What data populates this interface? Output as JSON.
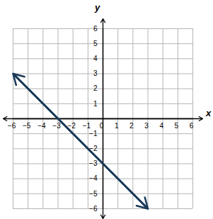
{
  "chart_data": {
    "type": "line",
    "xlabel": "x",
    "ylabel": "y",
    "x": [
      -6,
      3
    ],
    "values": [
      3,
      -6
    ],
    "color": "#1c3b5a",
    "xlim": [
      -6,
      6
    ],
    "ylim": [
      -6,
      6
    ],
    "xticks": [
      -6,
      -5,
      -4,
      -3,
      -2,
      -1,
      0,
      1,
      2,
      3,
      4,
      5,
      6
    ],
    "yticks": [
      -6,
      -5,
      -4,
      -3,
      -2,
      -1,
      1,
      2,
      3,
      4,
      5,
      6
    ],
    "grid": true,
    "marker": "arrow"
  }
}
